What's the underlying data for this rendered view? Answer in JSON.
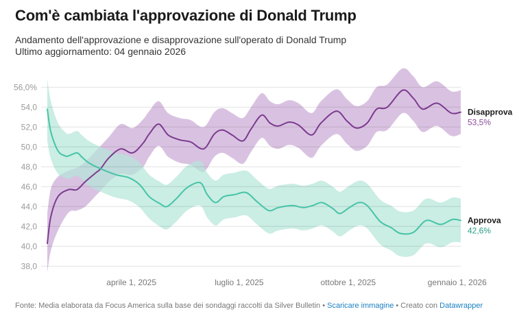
{
  "header": {
    "title": "Com'è cambiata l'approvazione di Donald Trump",
    "subtitle": "Andamento dell'approvazione e disapprovazione sull'operato di Donald Trump",
    "updated": "Ultimo aggiornamento: 04 gennaio 2026"
  },
  "footer": {
    "source": "Fonte: Media elaborata da Focus America sulla base dei sondaggi raccolti da Silver Bulletin",
    "sep1": " • ",
    "download_link": "Scaricare immagine",
    "sep2": " • Creato con ",
    "credit_link": "Datawrapper"
  },
  "chart_data": {
    "type": "line",
    "title": "Com'è cambiata l'approvazione di Donald Trump",
    "xlabel": "",
    "ylabel": "",
    "ylim": [
      38,
      56
    ],
    "xlim": [
      "2025-01-20",
      "2026-01-04"
    ],
    "grid": true,
    "yticks": [
      56,
      54,
      52,
      50,
      48,
      46,
      44,
      42,
      40,
      38
    ],
    "ytick_labels": [
      "56,0%",
      "54,0",
      "52,0",
      "50,0",
      "48,0",
      "46,0",
      "44,0",
      "42,0",
      "40,0",
      "38,0"
    ],
    "xticks": [
      "2025-04-01",
      "2025-07-01",
      "2025-10-01",
      "2026-01-01"
    ],
    "xtick_labels": [
      "aprile 1, 2025",
      "luglio 1, 2025",
      "ottobre 1, 2025",
      "gennaio 1, 2026"
    ],
    "legend": "inline-right",
    "series": [
      {
        "name": "Disapprova",
        "last_label": "53,5%",
        "line_color": "#7b3a8f",
        "band_color": "#c9a8d4",
        "label_color": "#8a4a9c",
        "points": [
          [
            "2025-01-20",
            40.3,
            37.4,
            43.3
          ],
          [
            "2025-01-23",
            43.0,
            39.6,
            45.8
          ],
          [
            "2025-01-29",
            45.0,
            41.6,
            47.0
          ],
          [
            "2025-02-07",
            45.7,
            43.4,
            47.6
          ],
          [
            "2025-02-14",
            45.7,
            43.6,
            47.9
          ],
          [
            "2025-02-21",
            46.5,
            44.0,
            48.5
          ],
          [
            "2025-03-02",
            47.4,
            45.1,
            49.6
          ],
          [
            "2025-03-06",
            47.8,
            45.6,
            50.1
          ],
          [
            "2025-03-13",
            48.9,
            46.5,
            51.0
          ],
          [
            "2025-03-23",
            49.8,
            47.3,
            52.3
          ],
          [
            "2025-04-02",
            49.4,
            47.2,
            51.9
          ],
          [
            "2025-04-11",
            50.4,
            48.0,
            52.8
          ],
          [
            "2025-04-16",
            51.3,
            49.0,
            53.6
          ],
          [
            "2025-04-24",
            52.3,
            50.1,
            54.6
          ],
          [
            "2025-05-02",
            51.2,
            49.0,
            53.4
          ],
          [
            "2025-05-12",
            50.7,
            48.4,
            52.9
          ],
          [
            "2025-05-21",
            50.5,
            48.2,
            52.7
          ],
          [
            "2025-06-01",
            49.8,
            47.5,
            52.0
          ],
          [
            "2025-06-10",
            51.3,
            49.0,
            53.5
          ],
          [
            "2025-06-17",
            51.7,
            49.4,
            53.9
          ],
          [
            "2025-06-25",
            51.2,
            48.9,
            53.4
          ],
          [
            "2025-07-04",
            50.6,
            48.3,
            52.9
          ],
          [
            "2025-07-11",
            51.8,
            49.5,
            54.0
          ],
          [
            "2025-07-20",
            53.2,
            50.9,
            55.4
          ],
          [
            "2025-07-27",
            52.4,
            50.1,
            54.6
          ],
          [
            "2025-08-03",
            52.1,
            49.8,
            54.3
          ],
          [
            "2025-08-12",
            52.5,
            50.2,
            54.7
          ],
          [
            "2025-08-20",
            52.2,
            49.9,
            54.4
          ],
          [
            "2025-08-31",
            51.2,
            48.9,
            53.4
          ],
          [
            "2025-09-08",
            52.4,
            50.1,
            54.6
          ],
          [
            "2025-09-21",
            53.6,
            51.3,
            55.8
          ],
          [
            "2025-09-30",
            52.6,
            50.3,
            54.8
          ],
          [
            "2025-10-08",
            51.9,
            49.6,
            54.1
          ],
          [
            "2025-10-17",
            52.4,
            50.1,
            54.6
          ],
          [
            "2025-10-25",
            53.8,
            51.5,
            56.0
          ],
          [
            "2025-11-03",
            54.0,
            51.7,
            56.3
          ],
          [
            "2025-11-16",
            55.7,
            53.4,
            57.9
          ],
          [
            "2025-11-25",
            54.9,
            52.6,
            57.1
          ],
          [
            "2025-12-03",
            53.8,
            51.5,
            56.0
          ],
          [
            "2025-12-15",
            54.4,
            52.1,
            56.6
          ],
          [
            "2025-12-27",
            53.4,
            51.1,
            55.6
          ],
          [
            "2026-01-04",
            53.5,
            51.3,
            55.7
          ]
        ]
      },
      {
        "name": "Approva",
        "last_label": "42,6%",
        "line_color": "#45c4a6",
        "band_color": "#b4e6d8",
        "label_color": "#2a9c86",
        "points": [
          [
            "2025-01-20",
            53.8,
            50.6,
            56.8
          ],
          [
            "2025-01-23",
            51.5,
            48.8,
            54.6
          ],
          [
            "2025-01-29",
            49.6,
            47.3,
            52.4
          ],
          [
            "2025-02-04",
            49.1,
            46.9,
            51.5
          ],
          [
            "2025-02-07",
            49.1,
            46.8,
            51.3
          ],
          [
            "2025-02-14",
            49.4,
            47.1,
            51.6
          ],
          [
            "2025-02-18",
            49.0,
            46.8,
            51.2
          ],
          [
            "2025-02-24",
            48.4,
            46.1,
            50.6
          ],
          [
            "2025-03-06",
            47.8,
            45.5,
            50.0
          ],
          [
            "2025-03-19",
            47.2,
            44.9,
            49.4
          ],
          [
            "2025-03-30",
            46.9,
            44.6,
            49.1
          ],
          [
            "2025-04-08",
            46.2,
            43.9,
            48.4
          ],
          [
            "2025-04-16",
            45.0,
            42.8,
            47.2
          ],
          [
            "2025-04-25",
            44.3,
            42.0,
            46.5
          ],
          [
            "2025-05-01",
            44.0,
            41.7,
            46.2
          ],
          [
            "2025-05-09",
            44.8,
            42.5,
            47.0
          ],
          [
            "2025-05-18",
            45.9,
            43.6,
            48.1
          ],
          [
            "2025-05-29",
            46.4,
            44.1,
            48.6
          ],
          [
            "2025-06-04",
            45.2,
            42.9,
            47.4
          ],
          [
            "2025-06-11",
            44.4,
            42.1,
            46.6
          ],
          [
            "2025-06-18",
            45.0,
            42.7,
            47.2
          ],
          [
            "2025-06-27",
            45.2,
            42.9,
            47.4
          ],
          [
            "2025-07-07",
            45.4,
            43.1,
            47.6
          ],
          [
            "2025-07-16",
            44.5,
            42.2,
            46.7
          ],
          [
            "2025-07-26",
            43.6,
            41.3,
            45.8
          ],
          [
            "2025-08-03",
            43.9,
            41.6,
            46.1
          ],
          [
            "2025-08-15",
            44.1,
            41.8,
            46.3
          ],
          [
            "2025-08-24",
            43.9,
            41.6,
            46.1
          ],
          [
            "2025-09-01",
            44.1,
            41.8,
            46.3
          ],
          [
            "2025-09-09",
            44.4,
            42.1,
            46.6
          ],
          [
            "2025-09-18",
            43.8,
            41.5,
            46.0
          ],
          [
            "2025-09-24",
            43.3,
            41.0,
            45.5
          ],
          [
            "2025-10-02",
            43.9,
            41.6,
            46.1
          ],
          [
            "2025-10-10",
            44.4,
            42.1,
            46.6
          ],
          [
            "2025-10-17",
            44.1,
            41.8,
            46.3
          ],
          [
            "2025-10-28",
            42.5,
            40.2,
            44.7
          ],
          [
            "2025-11-06",
            41.9,
            39.6,
            44.1
          ],
          [
            "2025-11-14",
            41.3,
            39.0,
            43.5
          ],
          [
            "2025-11-25",
            41.4,
            39.1,
            43.6
          ],
          [
            "2025-12-06",
            42.6,
            40.3,
            44.8
          ],
          [
            "2025-12-18",
            42.2,
            39.9,
            44.4
          ],
          [
            "2025-12-28",
            42.7,
            40.4,
            44.9
          ],
          [
            "2026-01-04",
            42.6,
            40.4,
            44.8
          ]
        ]
      }
    ]
  }
}
